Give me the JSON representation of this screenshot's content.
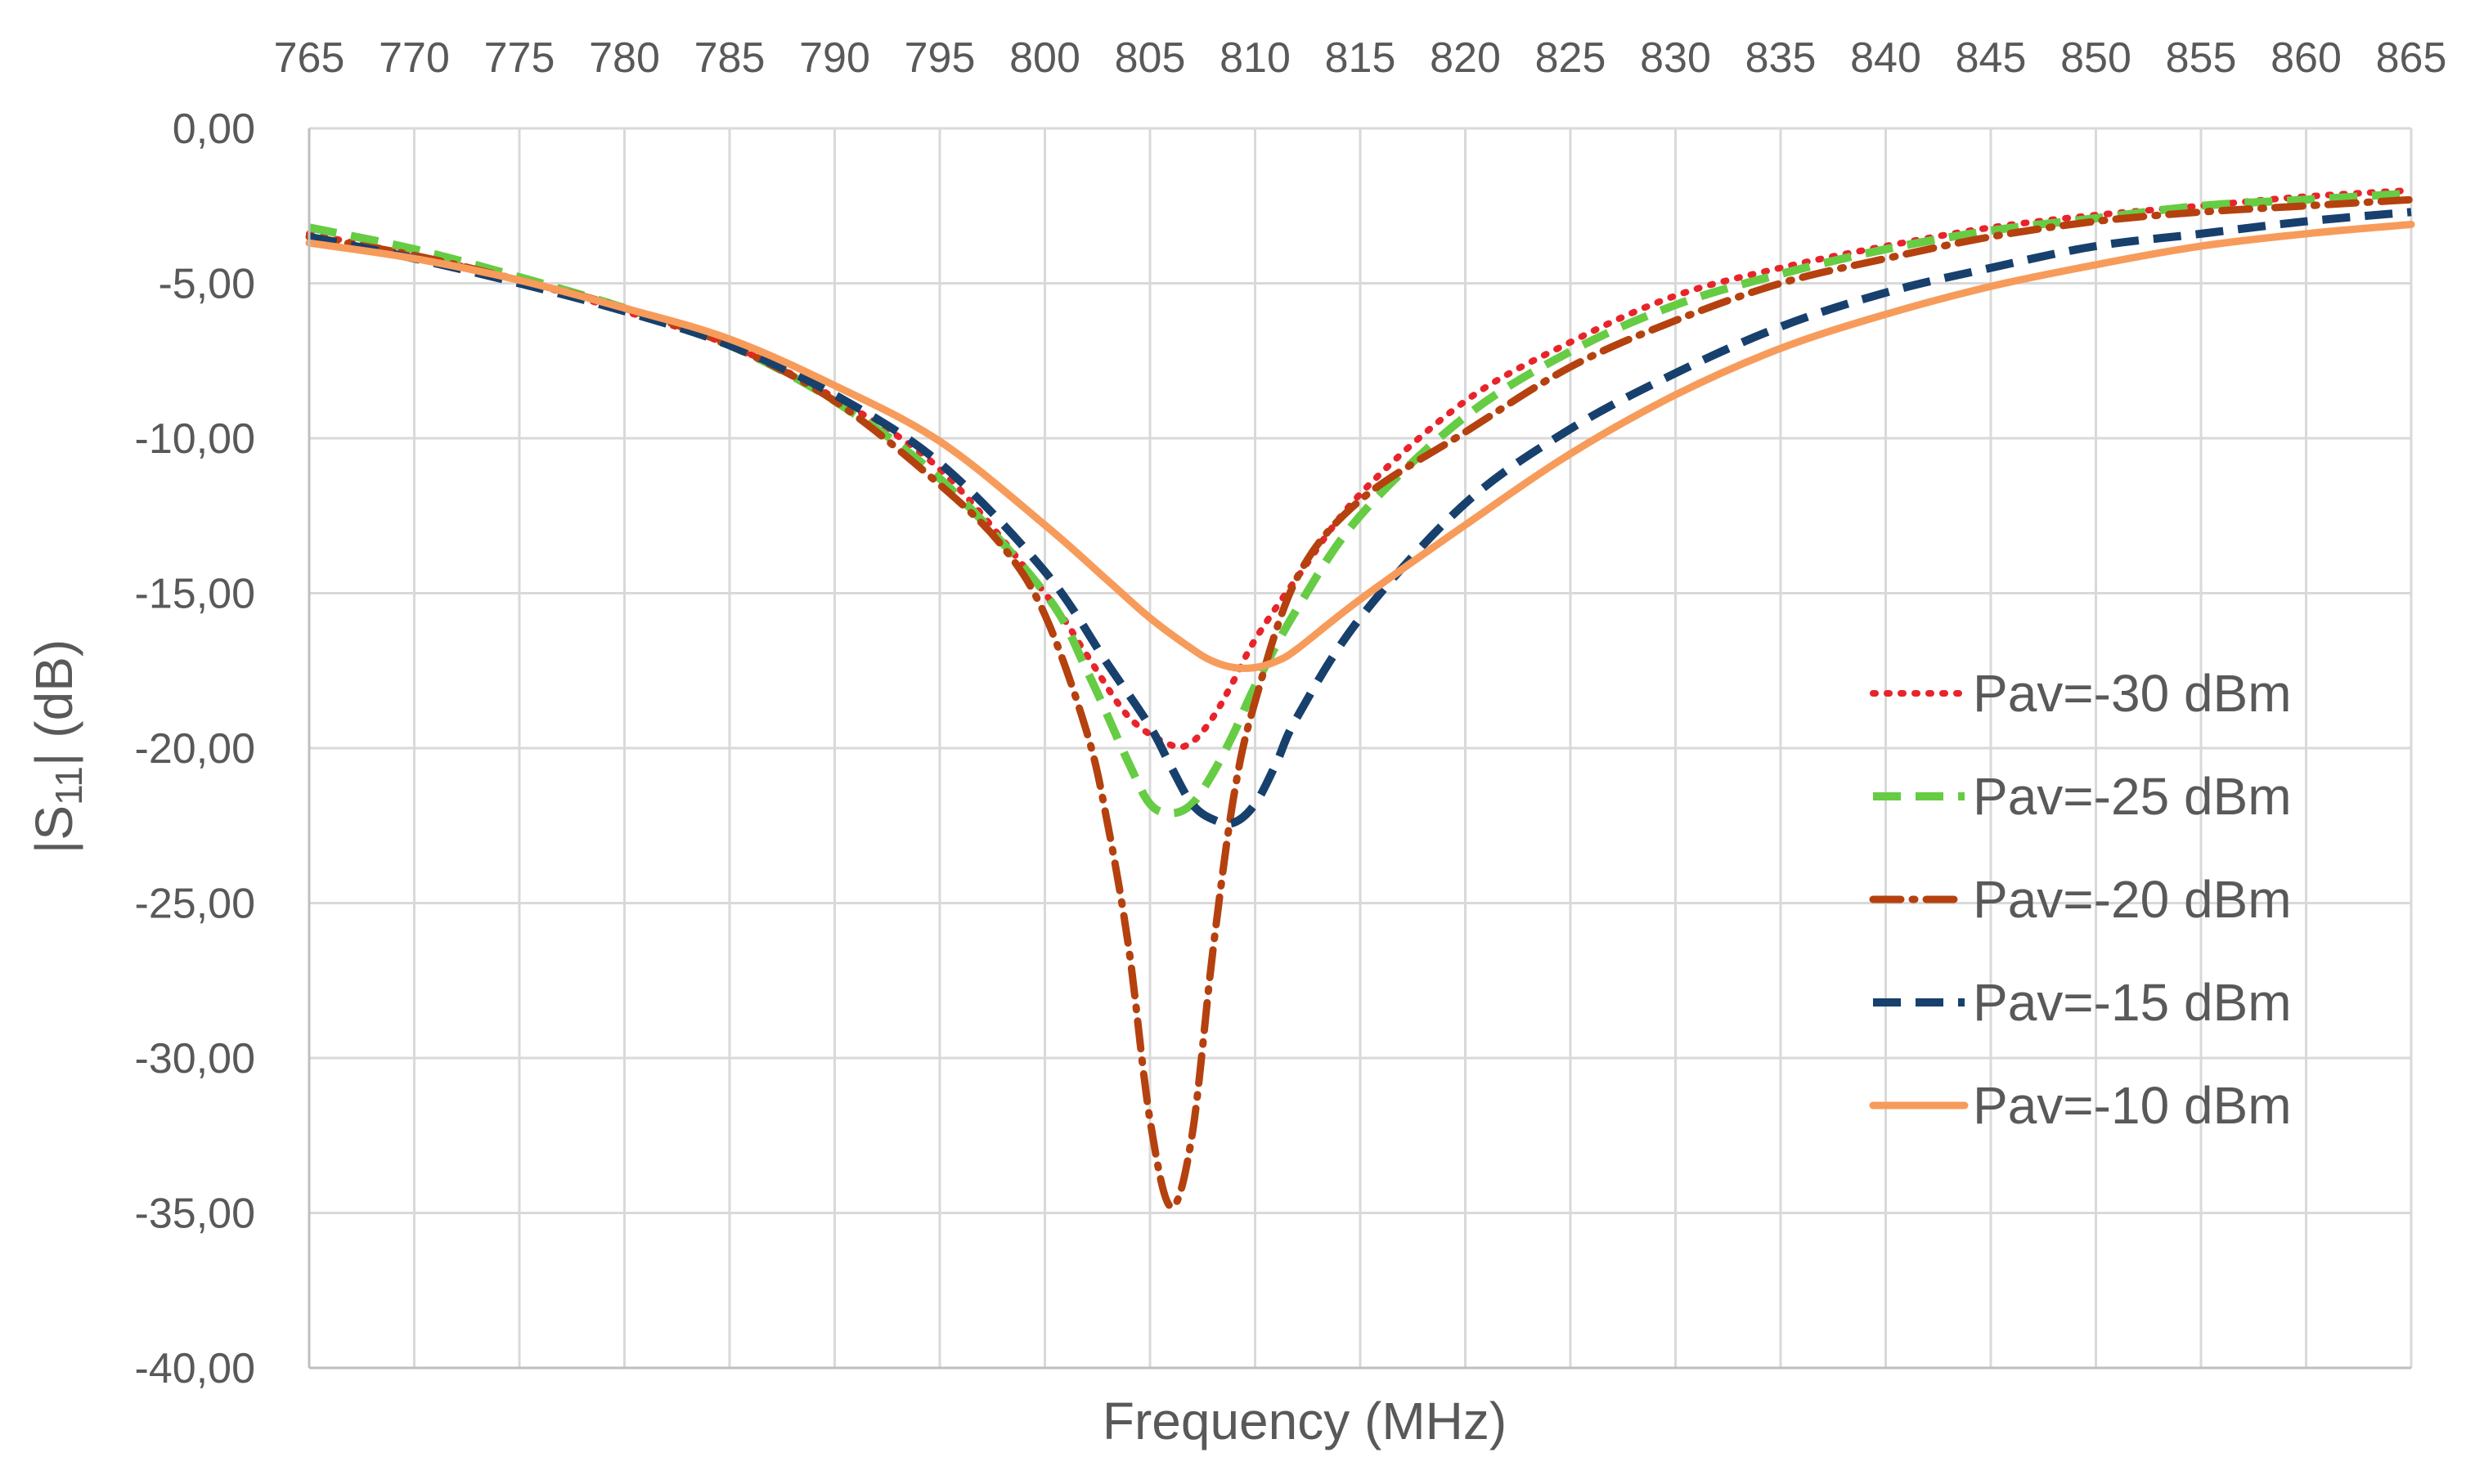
{
  "chart_data": {
    "type": "line",
    "title": "",
    "xlabel": "Frequency (MHz)",
    "ylabel": {
      "prefix": "|S",
      "sub": "11",
      "suffix": "| (dB)"
    },
    "xlim": [
      765,
      865
    ],
    "ylim": [
      -40,
      0
    ],
    "grid": true,
    "x_axis_position": "top",
    "legend_position": "right",
    "x_ticks": [
      765,
      770,
      775,
      780,
      785,
      790,
      795,
      800,
      805,
      810,
      815,
      820,
      825,
      830,
      835,
      840,
      845,
      850,
      855,
      860,
      865
    ],
    "x_tick_labels": [
      "765",
      "770",
      "775",
      "780",
      "785",
      "790",
      "795",
      "800",
      "805",
      "810",
      "815",
      "820",
      "825",
      "830",
      "835",
      "840",
      "845",
      "850",
      "855",
      "860",
      "865"
    ],
    "y_ticks": [
      0,
      -5,
      -10,
      -15,
      -20,
      -25,
      -30,
      -35,
      -40
    ],
    "y_tick_labels": [
      "0,00",
      "-5,00",
      "-10,00",
      "-15,00",
      "-20,00",
      "-25,00",
      "-30,00",
      "-35,00",
      "-40,00"
    ],
    "series": [
      {
        "name": "Pav=-30 dBm",
        "color": "#e8242b",
        "style": "dotted",
        "x": [
          765,
          770,
          775,
          780,
          785,
          790,
          795,
          800,
          802,
          804,
          806,
          807,
          808,
          809,
          810,
          812,
          815,
          820,
          825,
          830,
          835,
          840,
          845,
          850,
          855,
          860,
          865
        ],
        "y": [
          -3.4,
          -4.1,
          -4.9,
          -5.9,
          -7.0,
          -8.7,
          -11.0,
          -15.0,
          -17.0,
          -19.0,
          -19.9,
          -19.8,
          -19.0,
          -17.8,
          -16.5,
          -14.5,
          -11.8,
          -8.8,
          -6.9,
          -5.4,
          -4.5,
          -3.8,
          -3.2,
          -2.8,
          -2.5,
          -2.2,
          -2.0
        ]
      },
      {
        "name": "Pav=-25 dBm",
        "color": "#66cc44",
        "style": "dashed",
        "x": [
          765,
          770,
          775,
          780,
          785,
          790,
          795,
          800,
          802,
          804,
          805,
          806,
          807,
          808,
          809,
          810,
          812,
          815,
          820,
          825,
          830,
          835,
          840,
          845,
          850,
          855,
          860,
          865
        ],
        "y": [
          -3.2,
          -3.9,
          -4.8,
          -5.8,
          -7.0,
          -8.8,
          -11.3,
          -15.0,
          -17.5,
          -20.5,
          -21.8,
          -22.1,
          -21.8,
          -20.8,
          -19.5,
          -18.0,
          -15.5,
          -12.5,
          -9.3,
          -7.2,
          -5.7,
          -4.7,
          -3.9,
          -3.3,
          -2.9,
          -2.5,
          -2.3,
          -2.1
        ]
      },
      {
        "name": "Pav=-20 dBm",
        "color": "#b5410f",
        "style": "dashdot",
        "x": [
          765,
          770,
          775,
          780,
          785,
          790,
          795,
          798,
          800,
          802,
          803,
          804,
          805,
          806,
          807,
          808,
          809,
          810,
          812,
          815,
          820,
          825,
          830,
          835,
          840,
          845,
          850,
          855,
          860,
          865
        ],
        "y": [
          -3.5,
          -4.1,
          -4.9,
          -5.8,
          -7.0,
          -8.8,
          -11.5,
          -13.5,
          -15.7,
          -19.5,
          -22.5,
          -26.5,
          -32.0,
          -34.8,
          -32.5,
          -26.5,
          -21.5,
          -18.5,
          -14.5,
          -12.0,
          -9.8,
          -7.7,
          -6.2,
          -5.0,
          -4.2,
          -3.5,
          -3.0,
          -2.7,
          -2.5,
          -2.3
        ]
      },
      {
        "name": "Pav=-15 dBm",
        "color": "#17406d",
        "style": "dashed",
        "x": [
          765,
          770,
          775,
          780,
          785,
          790,
          795,
          800,
          803,
          805,
          806,
          807,
          808,
          809,
          810,
          811,
          812,
          815,
          820,
          825,
          830,
          835,
          840,
          845,
          850,
          855,
          860,
          865
        ],
        "y": [
          -3.5,
          -4.2,
          -5.0,
          -5.9,
          -7.0,
          -8.6,
          -10.8,
          -14.3,
          -17.3,
          -19.3,
          -20.6,
          -21.8,
          -22.3,
          -22.4,
          -21.8,
          -20.5,
          -19.0,
          -15.8,
          -12.1,
          -9.7,
          -7.9,
          -6.4,
          -5.3,
          -4.5,
          -3.8,
          -3.4,
          -3.0,
          -2.7
        ]
      },
      {
        "name": "Pav=-10 dBm",
        "color": "#f79b5b",
        "style": "solid",
        "x": [
          765,
          770,
          775,
          780,
          785,
          790,
          795,
          800,
          803,
          805,
          807,
          808,
          809,
          810,
          811,
          812,
          815,
          820,
          825,
          830,
          835,
          840,
          845,
          850,
          855,
          860,
          865
        ],
        "y": [
          -3.7,
          -4.2,
          -4.9,
          -5.8,
          -6.8,
          -8.3,
          -10.1,
          -12.8,
          -14.6,
          -15.8,
          -16.8,
          -17.2,
          -17.4,
          -17.4,
          -17.2,
          -16.8,
          -15.2,
          -12.8,
          -10.5,
          -8.6,
          -7.1,
          -6.0,
          -5.1,
          -4.4,
          -3.8,
          -3.4,
          -3.1
        ]
      }
    ]
  }
}
